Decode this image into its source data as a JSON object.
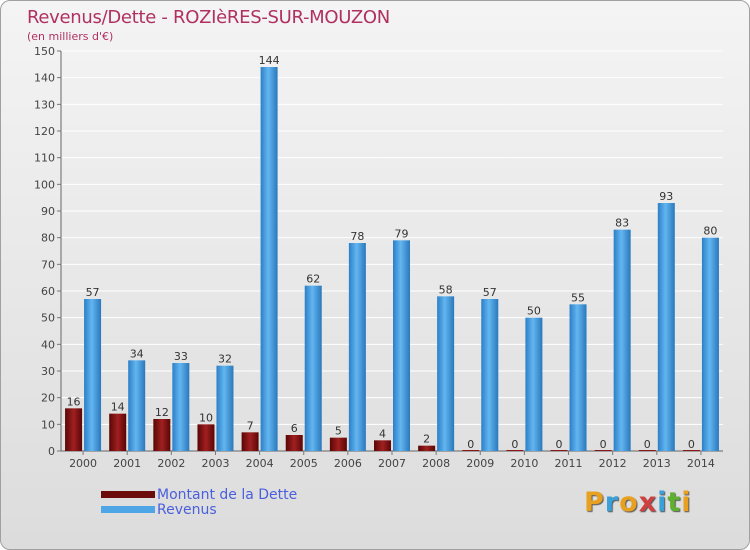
{
  "title": "Revenus/Dette - ROZIèRES-SUR-MOUZON",
  "subtitle": "(en milliers d'€)",
  "colors": {
    "dette": "#7a1010",
    "revenus": "#4ea6e6",
    "title": "#b03060",
    "legend": "#4a5fdc"
  },
  "legend": [
    {
      "label": "Montant de la Dette",
      "color": "#6b0b0b"
    },
    {
      "label": "Revenus",
      "color": "#4ea6e6"
    }
  ],
  "logo": {
    "text": "Proxiti"
  },
  "chart_data": {
    "type": "bar",
    "title": "Revenus/Dette - ROZIèRES-SUR-MOUZON",
    "ylabel": "(en milliers d'€)",
    "xlabel": "",
    "ylim": [
      0,
      150
    ],
    "ytick_step": 10,
    "grid": true,
    "categories": [
      "2000",
      "2001",
      "2002",
      "2003",
      "2004",
      "2005",
      "2006",
      "2007",
      "2008",
      "2009",
      "2010",
      "2011",
      "2012",
      "2013",
      "2014"
    ],
    "series": [
      {
        "name": "Montant de la Dette",
        "values": [
          16,
          14,
          12,
          10,
          7,
          6,
          5,
          4,
          2,
          0,
          0,
          0,
          0,
          0,
          0
        ]
      },
      {
        "name": "Revenus",
        "values": [
          57,
          34,
          33,
          32,
          144,
          62,
          78,
          79,
          58,
          57,
          50,
          55,
          83,
          93,
          80
        ]
      }
    ]
  }
}
